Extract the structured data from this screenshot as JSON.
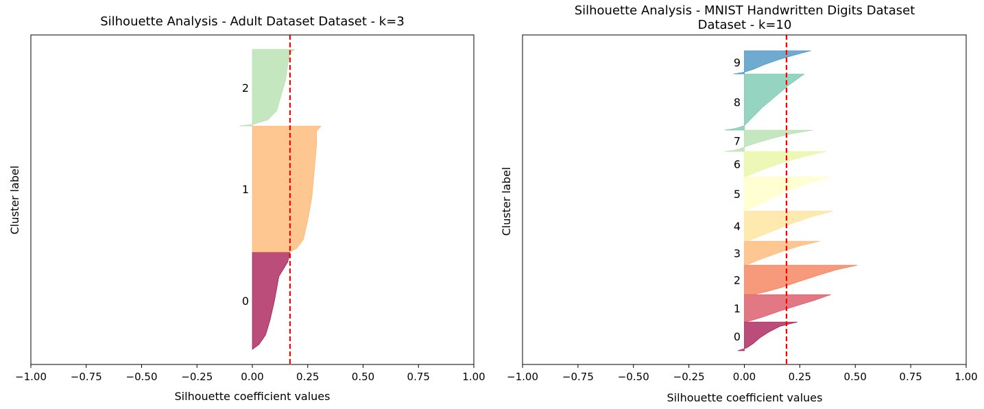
{
  "chart_data": [
    {
      "type": "area",
      "title_lines": [
        "Silhouette Analysis - Adult Dataset Dataset - k=3"
      ],
      "xlabel": "Silhouette coefficient values",
      "ylabel": "Cluster label",
      "xlim": [
        -1.0,
        1.0
      ],
      "xticks": [
        -1.0,
        -0.75,
        -0.5,
        -0.25,
        0.0,
        0.25,
        0.5,
        0.75,
        1.0
      ],
      "xtick_labels": [
        "−1.00",
        "−0.75",
        "−0.50",
        "−0.25",
        "0.00",
        "0.25",
        "0.50",
        "0.75",
        "1.00"
      ],
      "yticks_shown": false,
      "average_silhouette": 0.17,
      "clusters": [
        {
          "label": "0",
          "color": "#9e0142",
          "profile": [
            [
              0,
              0.17
            ],
            [
              0.1,
              0.16
            ],
            [
              0.25,
              0.12
            ],
            [
              0.5,
              0.1
            ],
            [
              0.7,
              0.08
            ],
            [
              0.85,
              0.06
            ],
            [
              0.95,
              0.03
            ],
            [
              1.0,
              0.0
            ]
          ]
        },
        {
          "label": "1",
          "color": "#fdae61",
          "profile": [
            [
              0,
              0.31
            ],
            [
              0.04,
              0.29
            ],
            [
              0.15,
              0.29
            ],
            [
              0.35,
              0.28
            ],
            [
              0.55,
              0.27
            ],
            [
              0.75,
              0.25
            ],
            [
              0.9,
              0.23
            ],
            [
              0.97,
              0.2
            ],
            [
              1.0,
              0.17
            ]
          ]
        },
        {
          "label": "2",
          "color": "#abdda4",
          "profile": [
            [
              0,
              0.19
            ],
            [
              0.05,
              0.17
            ],
            [
              0.2,
              0.16
            ],
            [
              0.4,
              0.15
            ],
            [
              0.6,
              0.13
            ],
            [
              0.8,
              0.11
            ],
            [
              0.92,
              0.07
            ],
            [
              0.98,
              0.0
            ],
            [
              1.0,
              -0.06
            ]
          ]
        }
      ]
    },
    {
      "type": "area",
      "title_lines": [
        "Silhouette Analysis - MNIST Handwritten Digits Dataset",
        "Dataset - k=10"
      ],
      "xlabel": "Silhouette coefficient values",
      "ylabel": "Cluster label",
      "xlim": [
        -1.0,
        1.0
      ],
      "xticks": [
        -1.0,
        -0.75,
        -0.5,
        -0.25,
        0.0,
        0.25,
        0.5,
        0.75,
        1.0
      ],
      "xtick_labels": [
        "−1.00",
        "−0.75",
        "−0.50",
        "−0.25",
        "0.00",
        "0.25",
        "0.50",
        "0.75",
        "1.00"
      ],
      "yticks_shown": false,
      "average_silhouette": 0.19,
      "clusters": [
        {
          "label": "0",
          "color": "#9e0142",
          "profile": [
            [
              0,
              0.24
            ],
            [
              0.15,
              0.16
            ],
            [
              0.35,
              0.11
            ],
            [
              0.55,
              0.07
            ],
            [
              0.75,
              0.04
            ],
            [
              0.9,
              0.01
            ],
            [
              0.95,
              -0.01
            ],
            [
              1.0,
              -0.03
            ]
          ]
        },
        {
          "label": "1",
          "color": "#d53e4f",
          "profile": [
            [
              0,
              0.39
            ],
            [
              0.2,
              0.32
            ],
            [
              0.4,
              0.24
            ],
            [
              0.6,
              0.16
            ],
            [
              0.8,
              0.09
            ],
            [
              0.95,
              0.03
            ],
            [
              1.0,
              0.0
            ]
          ]
        },
        {
          "label": "2",
          "color": "#f46d43",
          "profile": [
            [
              0,
              0.51
            ],
            [
              0.15,
              0.42
            ],
            [
              0.35,
              0.33
            ],
            [
              0.55,
              0.25
            ],
            [
              0.75,
              0.17
            ],
            [
              0.9,
              0.1
            ],
            [
              1.0,
              0.04
            ]
          ]
        },
        {
          "label": "3",
          "color": "#fdae61",
          "profile": [
            [
              0,
              0.34
            ],
            [
              0.2,
              0.25
            ],
            [
              0.4,
              0.18
            ],
            [
              0.6,
              0.12
            ],
            [
              0.8,
              0.06
            ],
            [
              0.95,
              0.02
            ],
            [
              1.0,
              0.0
            ]
          ]
        },
        {
          "label": "4",
          "color": "#fee08b",
          "profile": [
            [
              0,
              0.4
            ],
            [
              0.2,
              0.3
            ],
            [
              0.4,
              0.22
            ],
            [
              0.6,
              0.15
            ],
            [
              0.8,
              0.08
            ],
            [
              0.95,
              0.03
            ],
            [
              1.0,
              0.0
            ]
          ]
        },
        {
          "label": "5",
          "color": "#ffffbf",
          "profile": [
            [
              0,
              0.39
            ],
            [
              0.2,
              0.28
            ],
            [
              0.4,
              0.2
            ],
            [
              0.6,
              0.13
            ],
            [
              0.8,
              0.07
            ],
            [
              0.95,
              0.02
            ],
            [
              1.0,
              0.0
            ]
          ]
        },
        {
          "label": "6",
          "color": "#e6f598",
          "profile": [
            [
              0,
              0.37
            ],
            [
              0.2,
              0.27
            ],
            [
              0.4,
              0.19
            ],
            [
              0.6,
              0.12
            ],
            [
              0.8,
              0.06
            ],
            [
              0.95,
              0.02
            ],
            [
              1.0,
              0.0
            ]
          ]
        },
        {
          "label": "7",
          "color": "#abdda4",
          "profile": [
            [
              0,
              0.31
            ],
            [
              0.15,
              0.22
            ],
            [
              0.35,
              0.14
            ],
            [
              0.55,
              0.07
            ],
            [
              0.75,
              0.01
            ],
            [
              0.88,
              -0.02
            ],
            [
              0.96,
              -0.05
            ],
            [
              1.0,
              -0.09
            ]
          ]
        },
        {
          "label": "8",
          "color": "#66c2a5",
          "profile": [
            [
              0,
              0.27
            ],
            [
              0.2,
              0.2
            ],
            [
              0.4,
              0.14
            ],
            [
              0.6,
              0.08
            ],
            [
              0.8,
              0.03
            ],
            [
              0.92,
              0.0
            ],
            [
              0.97,
              -0.04
            ],
            [
              1.0,
              -0.09
            ]
          ]
        },
        {
          "label": "9",
          "color": "#3288bd",
          "profile": [
            [
              0,
              0.3
            ],
            [
              0.2,
              0.22
            ],
            [
              0.4,
              0.15
            ],
            [
              0.6,
              0.09
            ],
            [
              0.8,
              0.04
            ],
            [
              0.92,
              0.0
            ],
            [
              0.97,
              -0.03
            ],
            [
              1.0,
              -0.05
            ]
          ]
        }
      ]
    }
  ],
  "colors": {
    "average_line": "#ff0000",
    "axes": "#000000",
    "background": "#ffffff"
  }
}
